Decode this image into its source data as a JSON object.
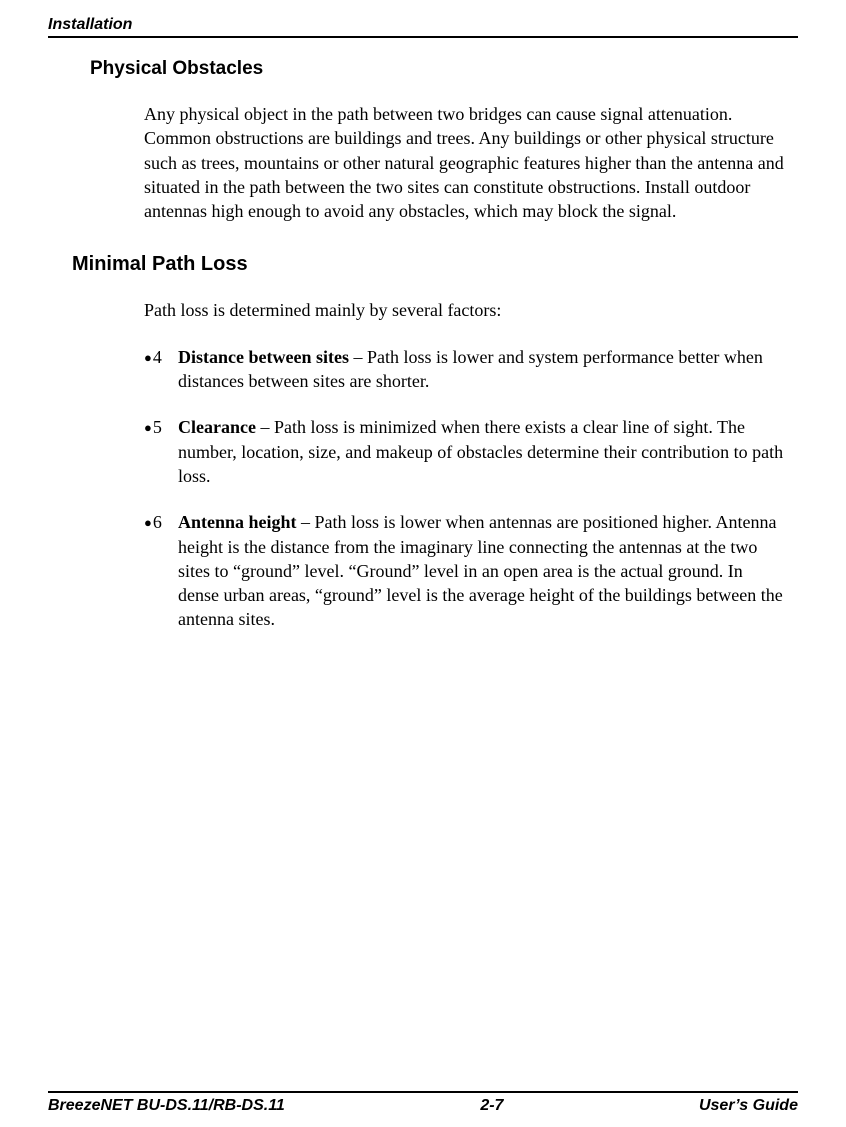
{
  "header": {
    "running_title": "Installation"
  },
  "section1": {
    "heading": "Physical Obstacles",
    "paragraph": "Any physical object in the path between two bridges can cause signal attenuation. Common obstructions are buildings and trees. Any buildings or other physical structure such as trees, mountains or other natural geographic features higher than the antenna and situated in the path between the two sites can constitute obstructions. Install outdoor antennas high enough to avoid any obstacles, which may block the signal."
  },
  "section2": {
    "heading": "Minimal Path Loss",
    "intro": "Path loss is determined mainly by several factors:",
    "bullets": [
      {
        "num": "4",
        "term": "Distance between sites",
        "text": " – Path loss is lower and system performance better when distances between sites are shorter."
      },
      {
        "num": "5",
        "term": "Clearance",
        "text": " – Path loss is minimized when there exists a clear line of sight. The number, location, size, and makeup of obstacles determine their contribution to path loss."
      },
      {
        "num": "6",
        "term": "Antenna height",
        "text": " – Path loss is lower when antennas are positioned higher. Antenna height is the distance from the imaginary line connecting the antennas at the two sites to “ground” level. “Ground” level in an open area is the actual ground. In dense urban areas, “ground” level is the average height of the buildings between the antenna sites."
      }
    ]
  },
  "footer": {
    "left": "BreezeNET BU-DS.11/RB-DS.11",
    "center": "2-7",
    "right": "User’s Guide"
  }
}
